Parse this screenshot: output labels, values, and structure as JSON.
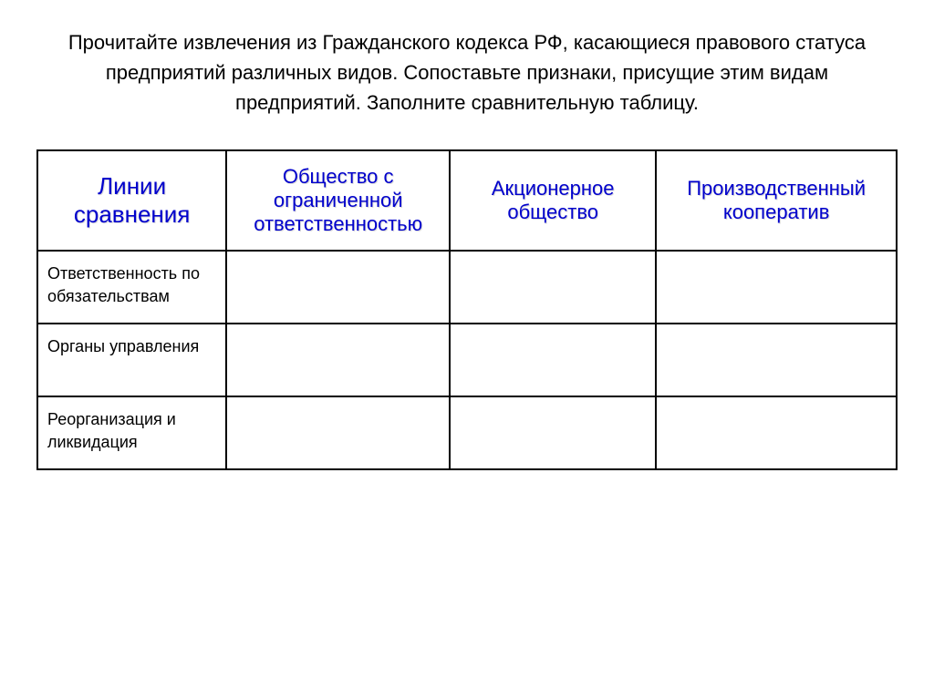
{
  "title": "Прочитайте извлечения из Гражданского кодекса РФ, касающиеся правового статуса предприятий различных видов. Сопоставьте признаки, присущие этим видам предприятий. Заполните сравнительную таблицу.",
  "table": {
    "columns": [
      {
        "label": "Линии сравнения",
        "fontsize": 26
      },
      {
        "label": "Общество с ограниченной ответственностью",
        "fontsize": 22
      },
      {
        "label": "Акционерное общество",
        "fontsize": 22
      },
      {
        "label": "Производственный кооператив",
        "fontsize": 22
      }
    ],
    "rows": [
      {
        "label": "Ответственность по обязательствам",
        "cells": [
          "",
          "",
          ""
        ]
      },
      {
        "label": "Органы управления",
        "cells": [
          "",
          "",
          ""
        ]
      },
      {
        "label": "Реорганизация и ликвидация",
        "cells": [
          "",
          "",
          ""
        ]
      }
    ],
    "header_color": "#0000cc",
    "border_color": "#000000",
    "background_color": "#ffffff",
    "title_fontsize": 22,
    "row_label_fontsize": 18
  }
}
